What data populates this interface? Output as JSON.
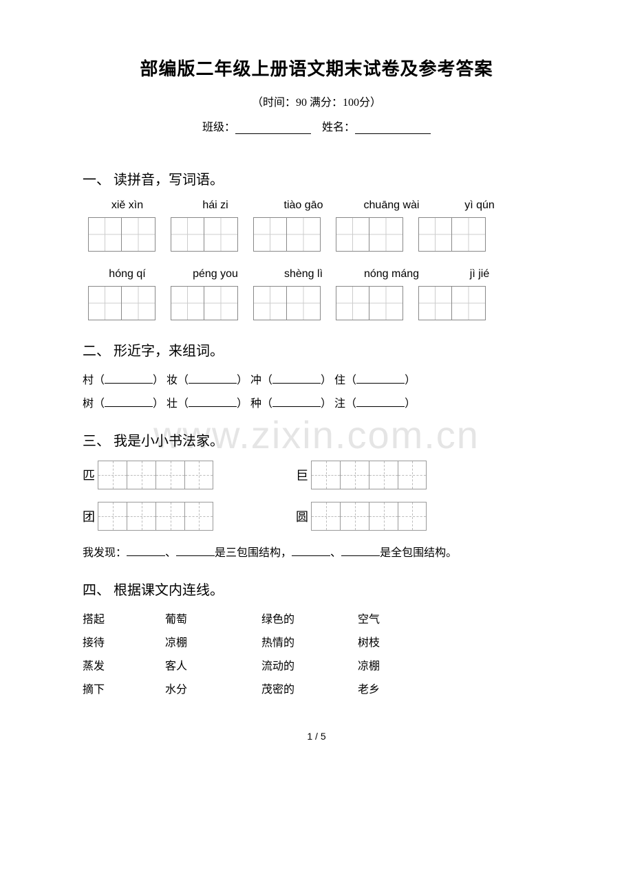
{
  "title": "部编版二年级上册语文期末试卷及参考答案",
  "subtitle": "（时间：90   满分：100分）",
  "form": {
    "class_label": "班级：",
    "name_label": "姓名："
  },
  "watermark": "www.zixin.com.cn",
  "sections": {
    "s1": {
      "heading": "一、 读拼音，写词语。",
      "row1": [
        "xiě xìn",
        "hái zi",
        "tiào gāo",
        "chuāng wài",
        "yì qún"
      ],
      "row2": [
        "hóng qí",
        "péng you",
        "shèng lì",
        "nóng máng",
        "jì jié"
      ]
    },
    "s2": {
      "heading": "二、 形近字，来组词。",
      "pairs_top": [
        "村（",
        "） 妆（",
        "） 冲（",
        "） 住（",
        "）"
      ],
      "pairs_bot": [
        "树（",
        "） 壮（",
        "） 种（",
        "） 注（",
        "）"
      ]
    },
    "s3": {
      "heading": "三、 我是小小书法家。",
      "items": [
        "匹",
        "巨",
        "团",
        "圆"
      ],
      "discovery_prefix": "我发现：",
      "discovery_mid1": "、",
      "discovery_text1": "是三包围结构，",
      "discovery_mid2": "、",
      "discovery_text2": "是全包围结构。"
    },
    "s4": {
      "heading": "四、 根据课文内连线。",
      "rows": [
        [
          "搭起",
          "葡萄",
          "绿色的",
          "空气"
        ],
        [
          "接待",
          "凉棚",
          "热情的",
          "树枝"
        ],
        [
          "蒸发",
          "客人",
          "流动的",
          "凉棚"
        ],
        [
          "摘下",
          "水分",
          "茂密的",
          "老乡"
        ]
      ]
    }
  },
  "page_num": "1 / 5",
  "colors": {
    "text": "#000000",
    "bg": "#ffffff",
    "grid_border": "#888888",
    "grid_dash": "#cccccc",
    "watermark": "rgba(180,180,180,0.35)"
  }
}
